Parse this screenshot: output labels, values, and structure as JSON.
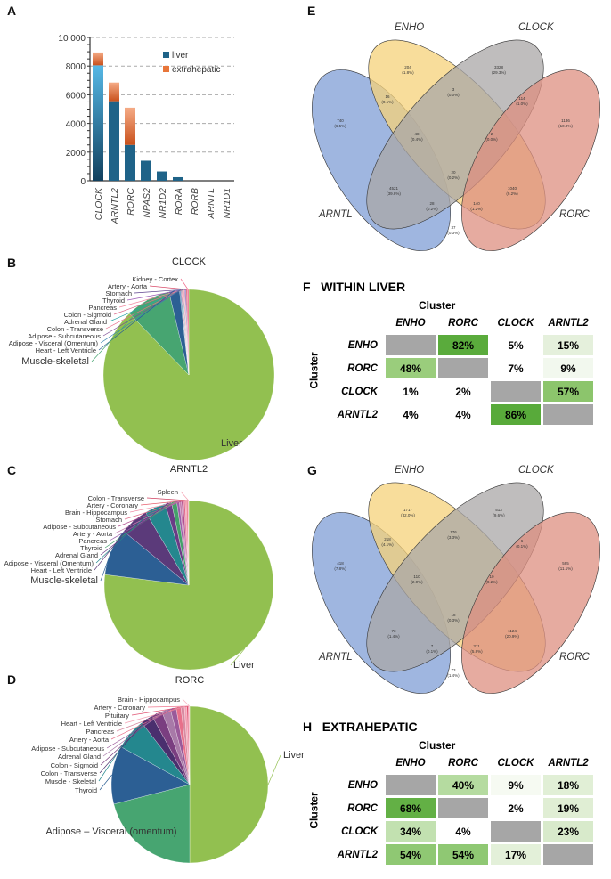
{
  "panels": {
    "A": "A",
    "B": "B",
    "C": "C",
    "D": "D",
    "E": "E",
    "F": "F",
    "G": "G",
    "H": "H"
  },
  "chart_data": [
    {
      "type": "bar",
      "stacked": true,
      "categories": [
        "CLOCK",
        "ARNTL2",
        "RORC",
        "NPAS2",
        "NR1D2",
        "RORA",
        "RORB",
        "ARNTL",
        "NR1D1"
      ],
      "series": [
        {
          "name": "liver",
          "values": [
            8050,
            5550,
            2500,
            1400,
            650,
            250,
            0,
            0,
            0
          ],
          "color": "#1f6388"
        },
        {
          "name": "extrahepatic",
          "values": [
            900,
            1300,
            2600,
            0,
            0,
            0,
            0,
            0,
            0
          ],
          "color": "#e8763a"
        }
      ],
      "ylim": [
        0,
        10000
      ],
      "yticks": [
        "0",
        "2000",
        "4000",
        "6000",
        "8000",
        "10 000"
      ],
      "ytick_values": [
        0,
        2000,
        4000,
        6000,
        8000,
        10000
      ],
      "grid": "dashed-horizontal",
      "legend": "top-right"
    },
    {
      "type": "pie",
      "title": "CLOCK",
      "slices": [
        {
          "label": "Liver",
          "value": 88.0,
          "color": "#92c050"
        },
        {
          "label": "Muscle-skeletal",
          "value": 8.5,
          "color": "#47a571"
        },
        {
          "label": "Heart - Left Ventricle",
          "value": 2.0,
          "color": "#2c5f94"
        },
        {
          "label": "Adipose - Visceral (Omentum)",
          "value": 0.2,
          "color": "#3b86b0"
        },
        {
          "label": "Adipose - Subcutaneous",
          "value": 0.15,
          "color": "#7b4a93"
        },
        {
          "label": "Colon - Transverse",
          "value": 0.15,
          "color": "#e86b8a"
        },
        {
          "label": "Adrenal Gland",
          "value": 0.15,
          "color": "#2aa6a6"
        },
        {
          "label": "Colon - Sigmoid",
          "value": 0.15,
          "color": "#e07090"
        },
        {
          "label": "Pancreas",
          "value": 0.15,
          "color": "#f08aa0"
        },
        {
          "label": "Thyroid",
          "value": 0.15,
          "color": "#9b59b6"
        },
        {
          "label": "Stomach",
          "value": 0.15,
          "color": "#5b3f8c"
        },
        {
          "label": "Artery - Aorta",
          "value": 0.2,
          "color": "#d94c6a"
        },
        {
          "label": "Kidney - Cortex",
          "value": 0.3,
          "color": "#f06c8c"
        }
      ]
    },
    {
      "type": "pie",
      "title": "ARNTL2",
      "slices": [
        {
          "label": "Liver",
          "value": 77.0,
          "color": "#92c050"
        },
        {
          "label": "Muscle-skeletal",
          "value": 9.0,
          "color": "#2c5f94"
        },
        {
          "label": "Heart - Left Ventricle",
          "value": 5.5,
          "color": "#5b3a7a"
        },
        {
          "label": "Adipose - Visceral (Omentum)",
          "value": 4.0,
          "color": "#24878e"
        },
        {
          "label": "Adrenal Gland",
          "value": 1.2,
          "color": "#6a3b86"
        },
        {
          "label": "Thyroid",
          "value": 1.0,
          "color": "#44a06a"
        },
        {
          "label": "Pancreas",
          "value": 0.5,
          "color": "#9a5ea8"
        },
        {
          "label": "Artery - Aorta",
          "value": 0.4,
          "color": "#c580b0"
        },
        {
          "label": "Adipose - Subcutaneous",
          "value": 0.4,
          "color": "#b24f90"
        },
        {
          "label": "Stomach",
          "value": 0.3,
          "color": "#e06a8a"
        },
        {
          "label": "Brain - Hippocampus",
          "value": 0.25,
          "color": "#f090a8"
        },
        {
          "label": "Artery - Coronary",
          "value": 0.25,
          "color": "#e86070"
        },
        {
          "label": "Colon - Transverse",
          "value": 0.1,
          "color": "#d04060"
        },
        {
          "label": "Spleen",
          "value": 0.1,
          "color": "#f4a0b0"
        }
      ]
    },
    {
      "type": "pie",
      "title": "RORC",
      "slices": [
        {
          "label": "Liver",
          "value": 50.0,
          "color": "#92c050"
        },
        {
          "label": "Adipose – Visceral (omentum)",
          "value": 21.0,
          "color": "#47a571"
        },
        {
          "label": "Thyroid",
          "value": 12.0,
          "color": "#2c5f94"
        },
        {
          "label": "Muscle - Skeletal",
          "value": 6.5,
          "color": "#24878e"
        },
        {
          "label": "Colon - Transverse",
          "value": 2.5,
          "color": "#4a2f6e"
        },
        {
          "label": "Colon - Sigmoid",
          "value": 2.2,
          "color": "#7a3e80"
        },
        {
          "label": "Adrenal Gland",
          "value": 1.8,
          "color": "#a87aa8"
        },
        {
          "label": "Adipose - Subcutaneous",
          "value": 1.2,
          "color": "#9a5a9a"
        },
        {
          "label": "Artery - Aorta",
          "value": 1.0,
          "color": "#e8708a"
        },
        {
          "label": "Pancreas",
          "value": 0.7,
          "color": "#d88aa0"
        },
        {
          "label": "Heart - Left Ventricle",
          "value": 0.5,
          "color": "#f4a0b4"
        },
        {
          "label": "Pituitary",
          "value": 0.3,
          "color": "#e05070"
        },
        {
          "label": "Artery - Coronary",
          "value": 0.2,
          "color": "#f07890"
        },
        {
          "label": "Brain - Hippocampus",
          "value": 0.1,
          "color": "#f8b0c0"
        }
      ]
    }
  ],
  "venn_e": {
    "sets": [
      "ARNTL",
      "ENHO",
      "CLOCK",
      "RORC"
    ],
    "regions": [
      [
        "740",
        "(6.5%)"
      ],
      [
        "204",
        "(1.8%)"
      ],
      [
        "3328",
        "(29.3%)"
      ],
      [
        "1136",
        "(10.0%)"
      ],
      [
        "16",
        "(0.1%)"
      ],
      [
        "3",
        "(0.0%)"
      ],
      [
        "114",
        "(1.0%)"
      ],
      [
        "48",
        "(0.4%)"
      ],
      [
        "2",
        "(0.0%)"
      ],
      [
        "20",
        "(0.2%)"
      ],
      [
        "4521",
        "(39.8%)"
      ],
      [
        "1040",
        "(9.2%)"
      ],
      [
        "28",
        "(0.2%)"
      ],
      [
        "140",
        "(1.2%)"
      ],
      [
        "37",
        "(0.3%)"
      ]
    ]
  },
  "venn_g": {
    "sets": [
      "ARNTL",
      "ENHO",
      "CLOCK",
      "RORC"
    ],
    "regions": [
      [
        "418",
        "(7.8%)"
      ],
      [
        "1717",
        "(32.0%)"
      ],
      [
        "513",
        "(9.6%)"
      ],
      [
        "595",
        "(11.1%)"
      ],
      [
        "218",
        "(4.1%)"
      ],
      [
        "176",
        "(3.3%)"
      ],
      [
        "6",
        "(0.1%)"
      ],
      [
        "110",
        "(2.0%)"
      ],
      [
        "10",
        "(0.2%)"
      ],
      [
        "18",
        "(0.3%)"
      ],
      [
        "73",
        "(1.4%)"
      ],
      [
        "1124",
        "(20.9%)"
      ],
      [
        "7",
        "(0.1%)"
      ],
      [
        "311",
        "(5.8%)"
      ],
      [
        "73",
        "(1.4%)"
      ]
    ]
  },
  "table_f": {
    "title": "WITHIN LIVER",
    "axis": "Cluster",
    "cols": [
      "ENHO",
      "RORC",
      "CLOCK",
      "ARNTL2"
    ],
    "rows": [
      {
        "label": "ENHO",
        "cells": [
          "",
          "82%",
          "5%",
          "15%"
        ],
        "colors": [
          "#a6a6a6",
          "#5aab3c",
          "#ffffff",
          "#e5f0dc"
        ]
      },
      {
        "label": "RORC",
        "cells": [
          "48%",
          "",
          "7%",
          "9%"
        ],
        "colors": [
          "#9acd7c",
          "#a6a6a6",
          "#ffffff",
          "#f2f8ee"
        ]
      },
      {
        "label": "CLOCK",
        "cells": [
          "1%",
          "2%",
          "",
          "57%"
        ],
        "colors": [
          "#ffffff",
          "#ffffff",
          "#a6a6a6",
          "#8cc56c"
        ]
      },
      {
        "label": "ARNTL2",
        "cells": [
          "4%",
          "4%",
          "86%",
          ""
        ],
        "colors": [
          "#ffffff",
          "#ffffff",
          "#58aa3a",
          "#a6a6a6"
        ]
      }
    ]
  },
  "table_h": {
    "title": "EXTRAHEPATIC",
    "axis": "Cluster",
    "cols": [
      "ENHO",
      "RORC",
      "CLOCK",
      "ARNTL2"
    ],
    "rows": [
      {
        "label": "ENHO",
        "cells": [
          "",
          "40%",
          "9%",
          "18%"
        ],
        "colors": [
          "#a6a6a6",
          "#b5dba0",
          "#f6faf2",
          "#e1efd6"
        ]
      },
      {
        "label": "RORC",
        "cells": [
          "68%",
          "",
          "2%",
          "19%"
        ],
        "colors": [
          "#63b045",
          "#a6a6a6",
          "#ffffff",
          "#e0eed4"
        ]
      },
      {
        "label": "CLOCK",
        "cells": [
          "34%",
          "4%",
          "",
          "23%"
        ],
        "colors": [
          "#c2e1b0",
          "#ffffff",
          "#a6a6a6",
          "#d8eacb"
        ]
      },
      {
        "label": "ARNTL2",
        "cells": [
          "54%",
          "54%",
          "17%",
          ""
        ],
        "colors": [
          "#8fc873",
          "#8fc873",
          "#e3f0d9",
          "#a6a6a6"
        ]
      }
    ]
  }
}
